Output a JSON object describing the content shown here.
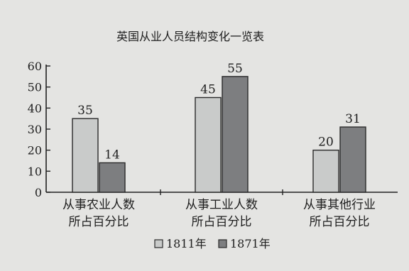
{
  "chart_data": {
    "type": "bar",
    "title": "英国从业人员结构变化一览表",
    "categories": [
      [
        "从事农业人数",
        "所占百分比"
      ],
      [
        "从事工业人数",
        "所占百分比"
      ],
      [
        "从事其他行业",
        "所占百分比"
      ]
    ],
    "series": [
      {
        "name": "1811年",
        "values": [
          35,
          45,
          20
        ],
        "color": "#c9cbca"
      },
      {
        "name": "1871年",
        "values": [
          14,
          55,
          31
        ],
        "color": "#7d7e80"
      }
    ],
    "ylim": [
      0,
      60
    ],
    "yticks": [
      0,
      10,
      20,
      30,
      40,
      50,
      60
    ],
    "xlabel": "",
    "ylabel": "",
    "grid": false,
    "legend": "bottom-center",
    "data_labels": true
  }
}
